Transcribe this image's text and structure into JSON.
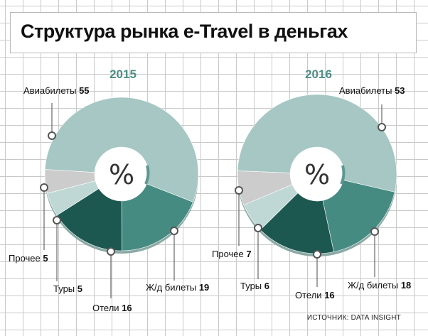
{
  "title": "Структура рынка e-Travel в деньгах",
  "source": "ИСТОЧНИК: DATA INSIGHT",
  "center_symbol": "%",
  "colors": {
    "air": "#a6c7c3",
    "rail": "#468b82",
    "hotels": "#1c5750",
    "tours": "#bfd8d5",
    "other": "#cccccc",
    "year": "#4d8e85",
    "marker_stroke": "#555555",
    "leader": "#666666"
  },
  "chart_data": [
    {
      "type": "pie",
      "title": "2015",
      "unit": "%",
      "slices": [
        {
          "label": "Авиабилеты",
          "value": 55,
          "color_key": "air"
        },
        {
          "label": "Ж/д билеты",
          "value": 19,
          "color_key": "rail"
        },
        {
          "label": "Отели",
          "value": 16,
          "color_key": "hotels"
        },
        {
          "label": "Туры",
          "value": 5,
          "color_key": "tours"
        },
        {
          "label": "Прочее",
          "value": 5,
          "color_key": "other"
        }
      ]
    },
    {
      "type": "pie",
      "title": "2016",
      "unit": "%",
      "slices": [
        {
          "label": "Авиабилеты",
          "value": 53,
          "color_key": "air"
        },
        {
          "label": "Ж/д билеты",
          "value": 18,
          "color_key": "rail"
        },
        {
          "label": "Отели",
          "value": 16,
          "color_key": "hotels"
        },
        {
          "label": "Туры",
          "value": 6,
          "color_key": "tours"
        },
        {
          "label": "Прочее",
          "value": 7,
          "color_key": "other"
        }
      ]
    }
  ]
}
